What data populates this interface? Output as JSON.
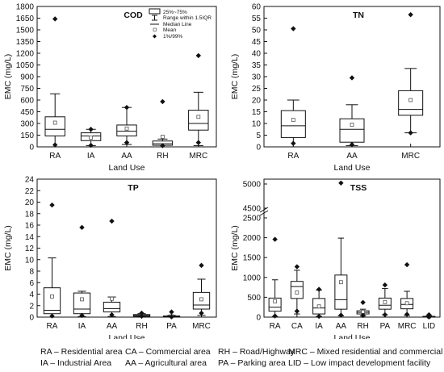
{
  "chart_data": [
    {
      "type": "box",
      "title": "COD",
      "xlabel": "Land Use",
      "ylabel": "EMC (mg/L)",
      "ylim": [
        0,
        1800
      ],
      "yticks": [
        "0",
        "150",
        "300",
        "450",
        "600",
        "750",
        "900",
        "1050",
        "1200",
        "1350",
        "1500",
        "1650",
        "1800"
      ],
      "categories": [
        "RA",
        "IA",
        "AA",
        "RH",
        "MRC"
      ],
      "boxes": [
        {
          "whisker_low": 0,
          "q1": 140,
          "median": 225,
          "q3": 385,
          "whisker_high": 680,
          "mean": 310,
          "p1": 25,
          "p99": 1640
        },
        {
          "whisker_low": 15,
          "q1": 80,
          "median": 140,
          "q3": 180,
          "whisker_high": 225,
          "mean": 120,
          "p1": 20,
          "p99": 225
        },
        {
          "whisker_low": 30,
          "q1": 140,
          "median": 200,
          "q3": 280,
          "whisker_high": 505,
          "mean": 235,
          "p1": 55,
          "p99": 505
        },
        {
          "whisker_low": 0,
          "q1": 20,
          "median": 40,
          "q3": 75,
          "whisker_high": 100,
          "mean": 130,
          "p1": 15,
          "p99": 580
        },
        {
          "whisker_low": 15,
          "q1": 215,
          "median": 300,
          "q3": 470,
          "whisker_high": 700,
          "mean": 385,
          "p1": 55,
          "p99": 1170
        }
      ],
      "legend": [
        "25%~75%",
        "Range within 1.5IQR",
        "Median Line",
        "Mean",
        "1%/99%"
      ]
    },
    {
      "type": "box",
      "title": "TN",
      "xlabel": "Land Use",
      "ylabel": "EMC (mg/L)",
      "ylim": [
        0,
        60
      ],
      "yticks": [
        "0",
        "5",
        "10",
        "15",
        "20",
        "25",
        "30",
        "35",
        "40",
        "45",
        "50",
        "55",
        "60"
      ],
      "categories": [
        "RA",
        "AA",
        "MRC"
      ],
      "boxes": [
        {
          "whisker_low": 0,
          "q1": 4,
          "median": 9,
          "q3": 15.5,
          "whisker_high": 20,
          "mean": 11.5,
          "p1": 1.5,
          "p99": 50.5
        },
        {
          "whisker_low": 0.5,
          "q1": 2,
          "median": 7.5,
          "q3": 12,
          "whisker_high": 18,
          "mean": 9.5,
          "p1": 1,
          "p99": 29.5
        },
        {
          "whisker_low": 6,
          "q1": 13.5,
          "median": 16,
          "q3": 24,
          "whisker_high": 33.5,
          "mean": 20,
          "p1": 6,
          "p99": 56.5
        }
      ]
    },
    {
      "type": "box",
      "title": "TP",
      "xlabel": "Land Use",
      "ylabel": "EMC (mg/L)",
      "ylim": [
        0,
        24
      ],
      "yticks": [
        "0",
        "2",
        "4",
        "6",
        "8",
        "10",
        "12",
        "14",
        "16",
        "18",
        "20",
        "22",
        "24"
      ],
      "categories": [
        "RA",
        "IA",
        "AA",
        "RH",
        "PA",
        "MRC"
      ],
      "boxes": [
        {
          "whisker_low": 0,
          "q1": 0.6,
          "median": 1.2,
          "q3": 5.1,
          "whisker_high": 10.3,
          "mean": 3.6,
          "p1": 0.2,
          "p99": 19.5
        },
        {
          "whisker_low": 0.1,
          "q1": 0.6,
          "median": 1.4,
          "q3": 4.2,
          "whisker_high": 4.5,
          "mean": 3.1,
          "p1": 0.3,
          "p99": 15.6
        },
        {
          "whisker_low": 0.1,
          "q1": 0.9,
          "median": 1.5,
          "q3": 2.6,
          "whisker_high": 3.5,
          "mean": 3.2,
          "p1": 0.4,
          "p99": 16.7
        },
        {
          "whisker_low": 0.1,
          "q1": 0.15,
          "median": 0.3,
          "q3": 0.45,
          "whisker_high": 0.6,
          "mean": 0.45,
          "p1": 0.15,
          "p99": 0.7
        },
        {
          "whisker_low": 0,
          "q1": 0.05,
          "median": 0.1,
          "q3": 0.2,
          "whisker_high": 0.3,
          "mean": 0.15,
          "p1": 0.05,
          "p99": 0.9
        },
        {
          "whisker_low": 0.3,
          "q1": 1.4,
          "median": 2.1,
          "q3": 4.3,
          "whisker_high": 6.6,
          "mean": 3.1,
          "p1": 0.7,
          "p99": 9.0
        }
      ]
    },
    {
      "type": "box",
      "title": "TSS",
      "xlabel": "Land Use",
      "ylabel": "EMC (mg/L)",
      "ylim_lower": [
        0,
        2500
      ],
      "ylim_upper": [
        4500,
        5000
      ],
      "yticks": [
        "0",
        "500",
        "1000",
        "1500",
        "2000",
        "2500",
        "4500",
        "5000"
      ],
      "categories": [
        "RA",
        "CA",
        "IA",
        "AA",
        "RH",
        "PA",
        "MRC",
        "LID"
      ],
      "boxes": [
        {
          "whisker_low": 10,
          "q1": 150,
          "median": 250,
          "q3": 480,
          "whisker_high": 940,
          "mean": 400,
          "p1": 30,
          "p99": 1960
        },
        {
          "whisker_low": 80,
          "q1": 470,
          "median": 770,
          "q3": 900,
          "whisker_high": 1180,
          "mean": 620,
          "p1": 150,
          "p99": 1270
        },
        {
          "whisker_low": 20,
          "q1": 80,
          "median": 230,
          "q3": 470,
          "whisker_high": 680,
          "mean": 270,
          "p1": 20,
          "p99": 700
        },
        {
          "whisker_low": 30,
          "q1": 200,
          "median": 440,
          "q3": 1060,
          "whisker_high": 1990,
          "mean": 880,
          "p1": 50,
          "p99": 5020
        },
        {
          "whisker_low": 30,
          "q1": 80,
          "median": 120,
          "q3": 160,
          "whisker_high": 200,
          "mean": 135,
          "p1": 40,
          "p99": 370
        },
        {
          "whisker_low": 60,
          "q1": 200,
          "median": 300,
          "q3": 480,
          "whisker_high": 720,
          "mean": 380,
          "p1": 60,
          "p99": 810
        },
        {
          "whisker_low": 40,
          "q1": 210,
          "median": 320,
          "q3": 470,
          "whisker_high": 650,
          "mean": 350,
          "p1": 70,
          "p99": 1320
        },
        {
          "whisker_low": 0,
          "q1": 5,
          "median": 10,
          "q3": 20,
          "whisker_high": 40,
          "mean": 15,
          "p1": 5,
          "p99": 60
        }
      ]
    }
  ],
  "abbreviations": [
    "RA – Residential area",
    "CA – Commercial area",
    "RH – Road/Highway",
    "MRC – Mixed residential and commercial",
    "IA – Industrial Area",
    "AA – Agricultural area",
    "PA – Parking area",
    "LID – Low impact development facility"
  ]
}
